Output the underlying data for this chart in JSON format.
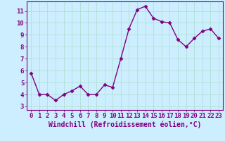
{
  "x": [
    0,
    1,
    2,
    3,
    4,
    5,
    6,
    7,
    8,
    9,
    10,
    11,
    12,
    13,
    14,
    15,
    16,
    17,
    18,
    19,
    20,
    21,
    22,
    23
  ],
  "y": [
    5.8,
    4.0,
    4.0,
    3.5,
    4.0,
    4.3,
    4.7,
    4.0,
    4.0,
    4.8,
    4.6,
    7.0,
    9.5,
    11.1,
    11.4,
    10.4,
    10.1,
    10.0,
    8.6,
    8.0,
    8.7,
    9.3,
    9.5,
    8.7
  ],
  "line_color": "#800080",
  "marker": "D",
  "marker_size": 2.5,
  "linewidth": 1.0,
  "xlabel": "Windchill (Refroidissement éolien,°C)",
  "ylabel": "",
  "title": "",
  "xlim": [
    -0.5,
    23.5
  ],
  "ylim": [
    2.7,
    11.8
  ],
  "yticks": [
    3,
    4,
    5,
    6,
    7,
    8,
    9,
    10,
    11
  ],
  "xticks": [
    0,
    1,
    2,
    3,
    4,
    5,
    6,
    7,
    8,
    9,
    10,
    11,
    12,
    13,
    14,
    15,
    16,
    17,
    18,
    19,
    20,
    21,
    22,
    23
  ],
  "bg_color": "#cceeff",
  "grid_color": "#aaddcc",
  "tick_label_fontsize": 6.5,
  "xlabel_fontsize": 7.0,
  "xlabel_color": "#800080",
  "tick_color": "#800080",
  "spine_color": "#800080"
}
